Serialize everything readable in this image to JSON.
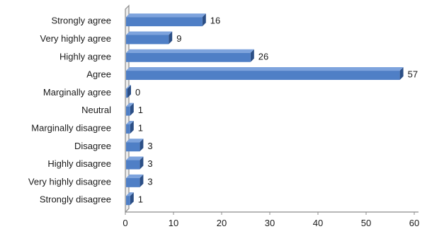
{
  "chart_data": {
    "type": "bar",
    "orientation": "horizontal",
    "style": "3d",
    "categories": [
      "Strongly agree",
      "Very highly agree",
      "Highly agree",
      "Agree",
      "Marginally agree",
      "Neutral",
      "Marginally disagree",
      "Disagree",
      "Highly disagree",
      "Very highly disagree",
      "Strongly disagree"
    ],
    "values": [
      16,
      9,
      26,
      57,
      0,
      1,
      1,
      3,
      3,
      3,
      1
    ],
    "value_labels": [
      "16",
      "9",
      "26",
      "57",
      "0",
      "1",
      "1",
      "3",
      "3",
      "3",
      "1"
    ],
    "xlim": [
      0,
      60
    ],
    "xticks": [
      0,
      10,
      20,
      30,
      40,
      50,
      60
    ],
    "xtick_labels": [
      "0",
      "10",
      "20",
      "30",
      "40",
      "50",
      "60"
    ],
    "grid": false,
    "legend": "none",
    "colors": {
      "bar_front": "#4f7fc6",
      "bar_top": "#7da3dd",
      "bar_side": "#2c4f86",
      "wall": "#8c8c8c"
    }
  }
}
